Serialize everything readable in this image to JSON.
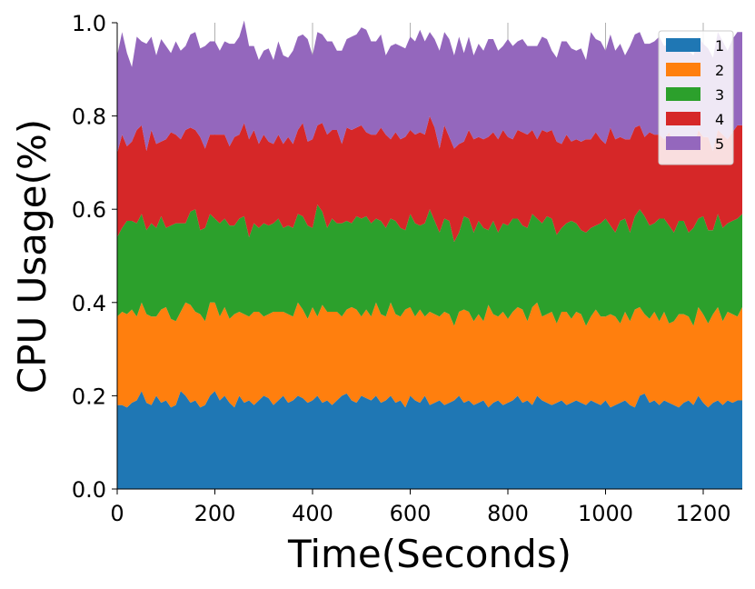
{
  "chart_data": {
    "type": "area",
    "stacked": true,
    "title": "",
    "xlabel": "Time(Seconds)",
    "ylabel": "CPU Usage(%)",
    "xlim": [
      0,
      1280
    ],
    "ylim": [
      0,
      1.0
    ],
    "xticks": [
      0,
      200,
      400,
      600,
      800,
      1000,
      1200
    ],
    "yticks": [
      0.0,
      0.2,
      0.4,
      0.6,
      0.8,
      1.0
    ],
    "xtick_labels": [
      "0",
      "200",
      "400",
      "600",
      "800",
      "1000",
      "1200"
    ],
    "ytick_labels": [
      "0.0",
      "0.2",
      "0.4",
      "0.6",
      "0.8",
      "1.0"
    ],
    "grid": "vertical-major",
    "legend_position": "top-right",
    "x": [
      0,
      10,
      20,
      30,
      40,
      50,
      60,
      70,
      80,
      90,
      100,
      110,
      120,
      130,
      140,
      150,
      160,
      170,
      180,
      190,
      200,
      210,
      220,
      230,
      240,
      250,
      260,
      270,
      280,
      290,
      300,
      310,
      320,
      330,
      340,
      350,
      360,
      370,
      380,
      390,
      400,
      410,
      420,
      430,
      440,
      450,
      460,
      470,
      480,
      490,
      500,
      510,
      520,
      530,
      540,
      550,
      560,
      570,
      580,
      590,
      600,
      610,
      620,
      630,
      640,
      650,
      660,
      670,
      680,
      690,
      700,
      710,
      720,
      730,
      740,
      750,
      760,
      770,
      780,
      790,
      800,
      810,
      820,
      830,
      840,
      850,
      860,
      870,
      880,
      890,
      900,
      910,
      920,
      930,
      940,
      950,
      960,
      970,
      980,
      990,
      1000,
      1010,
      1020,
      1030,
      1040,
      1050,
      1060,
      1070,
      1080,
      1090,
      1100,
      1110,
      1120,
      1130,
      1140,
      1150,
      1160,
      1170,
      1180,
      1190,
      1200,
      1210,
      1220,
      1230,
      1240,
      1250,
      1260,
      1270,
      1280
    ],
    "series": [
      {
        "name": "1",
        "color": "#1f77b4",
        "values": [
          0.18,
          0.18,
          0.175,
          0.185,
          0.19,
          0.21,
          0.185,
          0.18,
          0.2,
          0.185,
          0.19,
          0.175,
          0.18,
          0.21,
          0.2,
          0.185,
          0.19,
          0.175,
          0.18,
          0.2,
          0.21,
          0.19,
          0.2,
          0.185,
          0.175,
          0.2,
          0.185,
          0.19,
          0.18,
          0.19,
          0.2,
          0.195,
          0.18,
          0.19,
          0.2,
          0.185,
          0.19,
          0.2,
          0.195,
          0.185,
          0.19,
          0.2,
          0.185,
          0.19,
          0.18,
          0.19,
          0.2,
          0.205,
          0.19,
          0.185,
          0.2,
          0.195,
          0.19,
          0.2,
          0.185,
          0.19,
          0.2,
          0.185,
          0.19,
          0.175,
          0.2,
          0.19,
          0.185,
          0.2,
          0.18,
          0.185,
          0.19,
          0.18,
          0.185,
          0.19,
          0.2,
          0.185,
          0.19,
          0.18,
          0.185,
          0.19,
          0.175,
          0.185,
          0.19,
          0.18,
          0.185,
          0.19,
          0.2,
          0.185,
          0.19,
          0.18,
          0.2,
          0.19,
          0.185,
          0.18,
          0.185,
          0.19,
          0.18,
          0.185,
          0.19,
          0.185,
          0.18,
          0.19,
          0.185,
          0.18,
          0.19,
          0.175,
          0.18,
          0.185,
          0.19,
          0.18,
          0.175,
          0.2,
          0.205,
          0.185,
          0.19,
          0.18,
          0.19,
          0.185,
          0.18,
          0.175,
          0.185,
          0.19,
          0.18,
          0.2,
          0.185,
          0.175,
          0.185,
          0.19,
          0.18,
          0.19,
          0.185,
          0.19,
          0.19
        ]
      },
      {
        "name": "2",
        "color": "#ff7f0e",
        "values": [
          0.19,
          0.2,
          0.2,
          0.2,
          0.18,
          0.19,
          0.19,
          0.19,
          0.17,
          0.2,
          0.2,
          0.19,
          0.18,
          0.17,
          0.2,
          0.21,
          0.19,
          0.2,
          0.18,
          0.2,
          0.19,
          0.18,
          0.19,
          0.18,
          0.2,
          0.18,
          0.19,
          0.18,
          0.2,
          0.19,
          0.17,
          0.18,
          0.2,
          0.19,
          0.18,
          0.19,
          0.18,
          0.2,
          0.19,
          0.18,
          0.2,
          0.17,
          0.21,
          0.19,
          0.2,
          0.19,
          0.17,
          0.18,
          0.2,
          0.2,
          0.17,
          0.19,
          0.18,
          0.2,
          0.19,
          0.18,
          0.2,
          0.19,
          0.18,
          0.21,
          0.19,
          0.18,
          0.2,
          0.17,
          0.2,
          0.19,
          0.18,
          0.2,
          0.19,
          0.16,
          0.18,
          0.2,
          0.19,
          0.18,
          0.19,
          0.17,
          0.22,
          0.19,
          0.18,
          0.2,
          0.18,
          0.19,
          0.19,
          0.2,
          0.17,
          0.21,
          0.2,
          0.18,
          0.19,
          0.2,
          0.17,
          0.19,
          0.2,
          0.18,
          0.19,
          0.19,
          0.17,
          0.18,
          0.2,
          0.19,
          0.18,
          0.2,
          0.19,
          0.17,
          0.19,
          0.18,
          0.21,
          0.19,
          0.17,
          0.18,
          0.19,
          0.18,
          0.19,
          0.17,
          0.18,
          0.2,
          0.19,
          0.18,
          0.17,
          0.19,
          0.19,
          0.18,
          0.19,
          0.2,
          0.18,
          0.19,
          0.19,
          0.18,
          0.2
        ]
      },
      {
        "name": "3",
        "color": "#2ca02c",
        "values": [
          0.17,
          0.18,
          0.2,
          0.19,
          0.2,
          0.19,
          0.18,
          0.2,
          0.19,
          0.2,
          0.17,
          0.2,
          0.21,
          0.19,
          0.17,
          0.2,
          0.22,
          0.18,
          0.2,
          0.19,
          0.18,
          0.2,
          0.19,
          0.2,
          0.19,
          0.2,
          0.21,
          0.17,
          0.19,
          0.18,
          0.2,
          0.19,
          0.19,
          0.2,
          0.18,
          0.19,
          0.19,
          0.19,
          0.2,
          0.2,
          0.17,
          0.24,
          0.2,
          0.18,
          0.2,
          0.19,
          0.2,
          0.19,
          0.18,
          0.2,
          0.21,
          0.2,
          0.2,
          0.18,
          0.2,
          0.19,
          0.18,
          0.2,
          0.19,
          0.17,
          0.2,
          0.2,
          0.18,
          0.2,
          0.22,
          0.2,
          0.18,
          0.2,
          0.2,
          0.18,
          0.17,
          0.2,
          0.2,
          0.19,
          0.2,
          0.2,
          0.16,
          0.2,
          0.18,
          0.19,
          0.2,
          0.2,
          0.19,
          0.18,
          0.2,
          0.2,
          0.18,
          0.2,
          0.21,
          0.2,
          0.19,
          0.18,
          0.19,
          0.21,
          0.19,
          0.18,
          0.2,
          0.19,
          0.18,
          0.2,
          0.21,
          0.19,
          0.18,
          0.22,
          0.2,
          0.19,
          0.2,
          0.21,
          0.21,
          0.2,
          0.19,
          0.22,
          0.2,
          0.21,
          0.19,
          0.2,
          0.2,
          0.18,
          0.21,
          0.19,
          0.21,
          0.2,
          0.18,
          0.2,
          0.2,
          0.19,
          0.2,
          0.21,
          0.2
        ]
      },
      {
        "name": "4",
        "color": "#d62728",
        "values": [
          0.18,
          0.2,
          0.16,
          0.17,
          0.2,
          0.19,
          0.17,
          0.2,
          0.18,
          0.16,
          0.19,
          0.2,
          0.19,
          0.18,
          0.2,
          0.18,
          0.17,
          0.2,
          0.17,
          0.17,
          0.18,
          0.19,
          0.18,
          0.17,
          0.19,
          0.18,
          0.2,
          0.21,
          0.2,
          0.18,
          0.19,
          0.18,
          0.17,
          0.18,
          0.18,
          0.19,
          0.18,
          0.18,
          0.2,
          0.18,
          0.19,
          0.17,
          0.19,
          0.2,
          0.19,
          0.2,
          0.17,
          0.2,
          0.2,
          0.19,
          0.2,
          0.18,
          0.19,
          0.18,
          0.2,
          0.2,
          0.17,
          0.19,
          0.19,
          0.2,
          0.18,
          0.19,
          0.2,
          0.19,
          0.2,
          0.2,
          0.18,
          0.2,
          0.18,
          0.2,
          0.19,
          0.16,
          0.19,
          0.2,
          0.18,
          0.19,
          0.2,
          0.19,
          0.2,
          0.2,
          0.19,
          0.17,
          0.19,
          0.2,
          0.2,
          0.18,
          0.17,
          0.2,
          0.18,
          0.19,
          0.2,
          0.18,
          0.19,
          0.17,
          0.18,
          0.19,
          0.2,
          0.19,
          0.2,
          0.18,
          0.16,
          0.21,
          0.2,
          0.18,
          0.17,
          0.2,
          0.19,
          0.18,
          0.17,
          0.2,
          0.19,
          0.18,
          0.17,
          0.2,
          0.19,
          0.18,
          0.18,
          0.19,
          0.17,
          0.19,
          0.17,
          0.2,
          0.17,
          0.18,
          0.2,
          0.18,
          0.19,
          0.2,
          0.19
        ]
      },
      {
        "name": "5",
        "color": "#9467bd",
        "values": [
          0.21,
          0.22,
          0.2,
          0.16,
          0.2,
          0.18,
          0.23,
          0.2,
          0.19,
          0.22,
          0.2,
          0.17,
          0.2,
          0.19,
          0.18,
          0.2,
          0.21,
          0.19,
          0.22,
          0.2,
          0.2,
          0.18,
          0.2,
          0.22,
          0.2,
          0.21,
          0.22,
          0.2,
          0.18,
          0.18,
          0.18,
          0.2,
          0.18,
          0.2,
          0.19,
          0.17,
          0.2,
          0.2,
          0.19,
          0.22,
          0.18,
          0.2,
          0.19,
          0.2,
          0.19,
          0.17,
          0.2,
          0.19,
          0.2,
          0.2,
          0.21,
          0.22,
          0.2,
          0.2,
          0.2,
          0.17,
          0.2,
          0.19,
          0.2,
          0.19,
          0.2,
          0.2,
          0.22,
          0.2,
          0.18,
          0.19,
          0.21,
          0.2,
          0.21,
          0.2,
          0.23,
          0.19,
          0.2,
          0.18,
          0.2,
          0.19,
          0.21,
          0.2,
          0.19,
          0.18,
          0.21,
          0.2,
          0.19,
          0.2,
          0.19,
          0.18,
          0.2,
          0.2,
          0.2,
          0.17,
          0.18,
          0.22,
          0.2,
          0.2,
          0.19,
          0.2,
          0.17,
          0.23,
          0.2,
          0.21,
          0.2,
          0.2,
          0.19,
          0.2,
          0.18,
          0.2,
          0.2,
          0.2,
          0.2,
          0.19,
          0.2,
          0.21,
          0.2,
          0.19,
          0.2,
          0.19,
          0.19,
          0.2,
          0.2,
          0.2,
          0.2,
          0.19,
          0.2,
          0.21,
          0.2,
          0.19,
          0.2,
          0.2,
          0.2
        ]
      }
    ]
  }
}
